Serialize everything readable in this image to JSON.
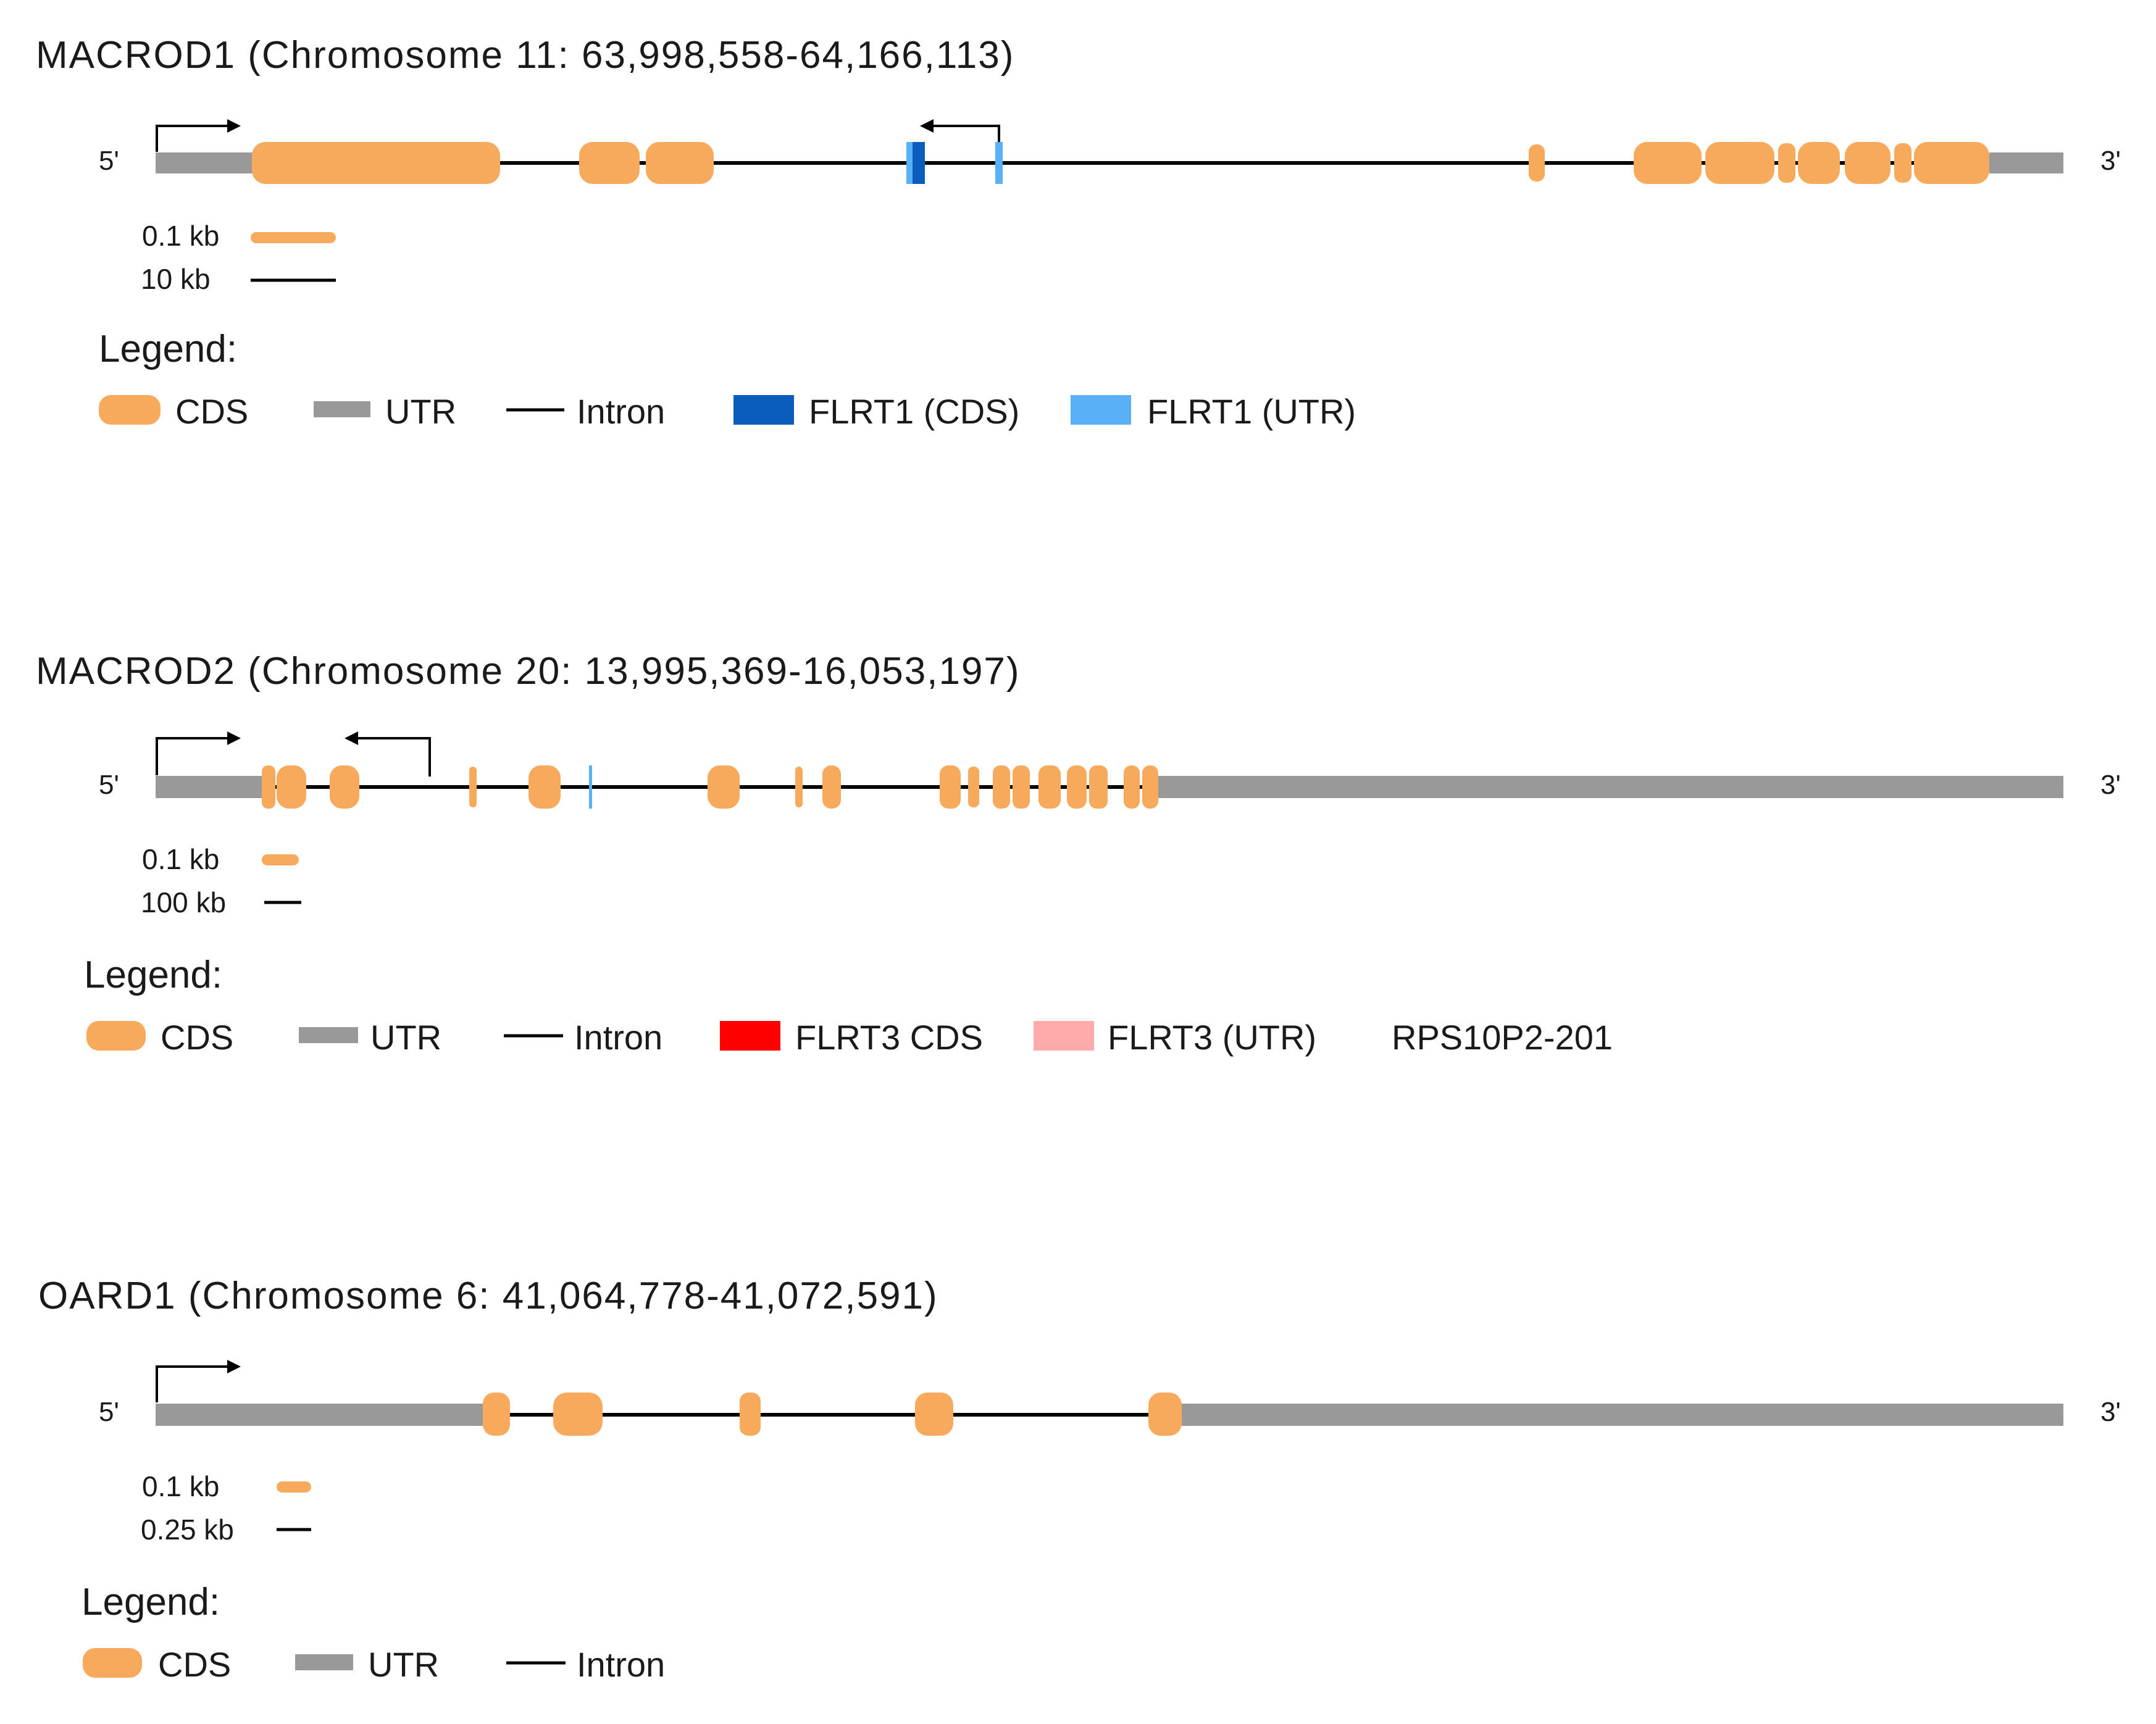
{
  "colors": {
    "cds": "#f8aa5c",
    "utr": "#999999",
    "intron": "#000000",
    "flrt1_cds": "#0b5dbd",
    "flrt1_utr": "#5ab0f5",
    "flrt3_cds": "#ff0000",
    "flrt3_utr": "#ffaaaa"
  },
  "end_labels": {
    "five_prime": "5'",
    "three_prime": "3'"
  },
  "genes": [
    {
      "id": "macrod1",
      "title": "MACROD1 (Chromosome 11: 63,998,558-64,166,113)",
      "scale": {
        "cds_label": "0.1 kb",
        "intron_label": "10 kb"
      },
      "legend": {
        "heading": "Legend:",
        "items": [
          {
            "type": "cds",
            "label": "CDS"
          },
          {
            "type": "utr",
            "label": "UTR"
          },
          {
            "type": "intron",
            "label": "Intron"
          },
          {
            "type": "flrt1_cds",
            "label": "FLRT1 (CDS)"
          },
          {
            "type": "flrt1_utr",
            "label": "FLRT1 (UTR)"
          }
        ]
      }
    },
    {
      "id": "macrod2",
      "title": "MACROD2 (Chromosome 20: 13,995,369-16,053,197)",
      "scale": {
        "cds_label": "0.1 kb",
        "intron_label": "100 kb"
      },
      "legend": {
        "heading": "Legend:",
        "items": [
          {
            "type": "cds",
            "label": "CDS"
          },
          {
            "type": "utr",
            "label": "UTR"
          },
          {
            "type": "intron",
            "label": "Intron"
          },
          {
            "type": "flrt3_cds",
            "label": "FLRT3 CDS"
          },
          {
            "type": "flrt3_utr",
            "label": "FLRT3 (UTR)"
          },
          {
            "type": "text",
            "label": "RPS10P2-201"
          }
        ]
      }
    },
    {
      "id": "oard1",
      "title": "OARD1 (Chromosome 6: 41,064,778-41,072,591)",
      "scale": {
        "cds_label": "0.1 kb",
        "intron_label": "0.25 kb"
      },
      "legend": {
        "heading": "Legend:",
        "items": [
          {
            "type": "cds",
            "label": "CDS"
          },
          {
            "type": "utr",
            "label": "UTR"
          },
          {
            "type": "intron",
            "label": "Intron"
          }
        ]
      }
    }
  ]
}
